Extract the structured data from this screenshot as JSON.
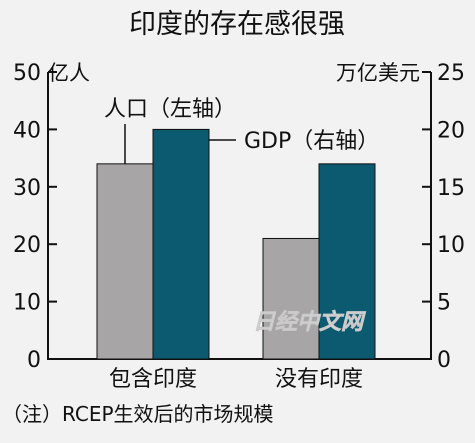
{
  "chart_data": {
    "type": "bar",
    "title": "印度的存在感很强",
    "categories": [
      "包含印度",
      "没有印度"
    ],
    "series": [
      {
        "name": "人口（左轴）",
        "axis": "left",
        "unit": "亿人",
        "values": [
          34,
          21
        ],
        "color": "#a7a5a5"
      },
      {
        "name": "GDP（右轴）",
        "axis": "right",
        "unit": "万亿美元",
        "values": [
          20,
          17
        ],
        "color": "#0c5a70"
      }
    ],
    "left_axis": {
      "label": "亿人",
      "ylim": [
        0,
        50
      ],
      "ticks": [
        "0",
        "10",
        "20",
        "30",
        "40",
        "50"
      ]
    },
    "right_axis": {
      "label": "万亿美元",
      "ylim": [
        0,
        25
      ],
      "ticks": [
        "0",
        "5",
        "10",
        "15",
        "20",
        "25"
      ]
    },
    "legend_placement": "callouts",
    "grid": false
  },
  "footnote": "（注）RCEP生效后的市场规模",
  "watermark": "日经中文网"
}
